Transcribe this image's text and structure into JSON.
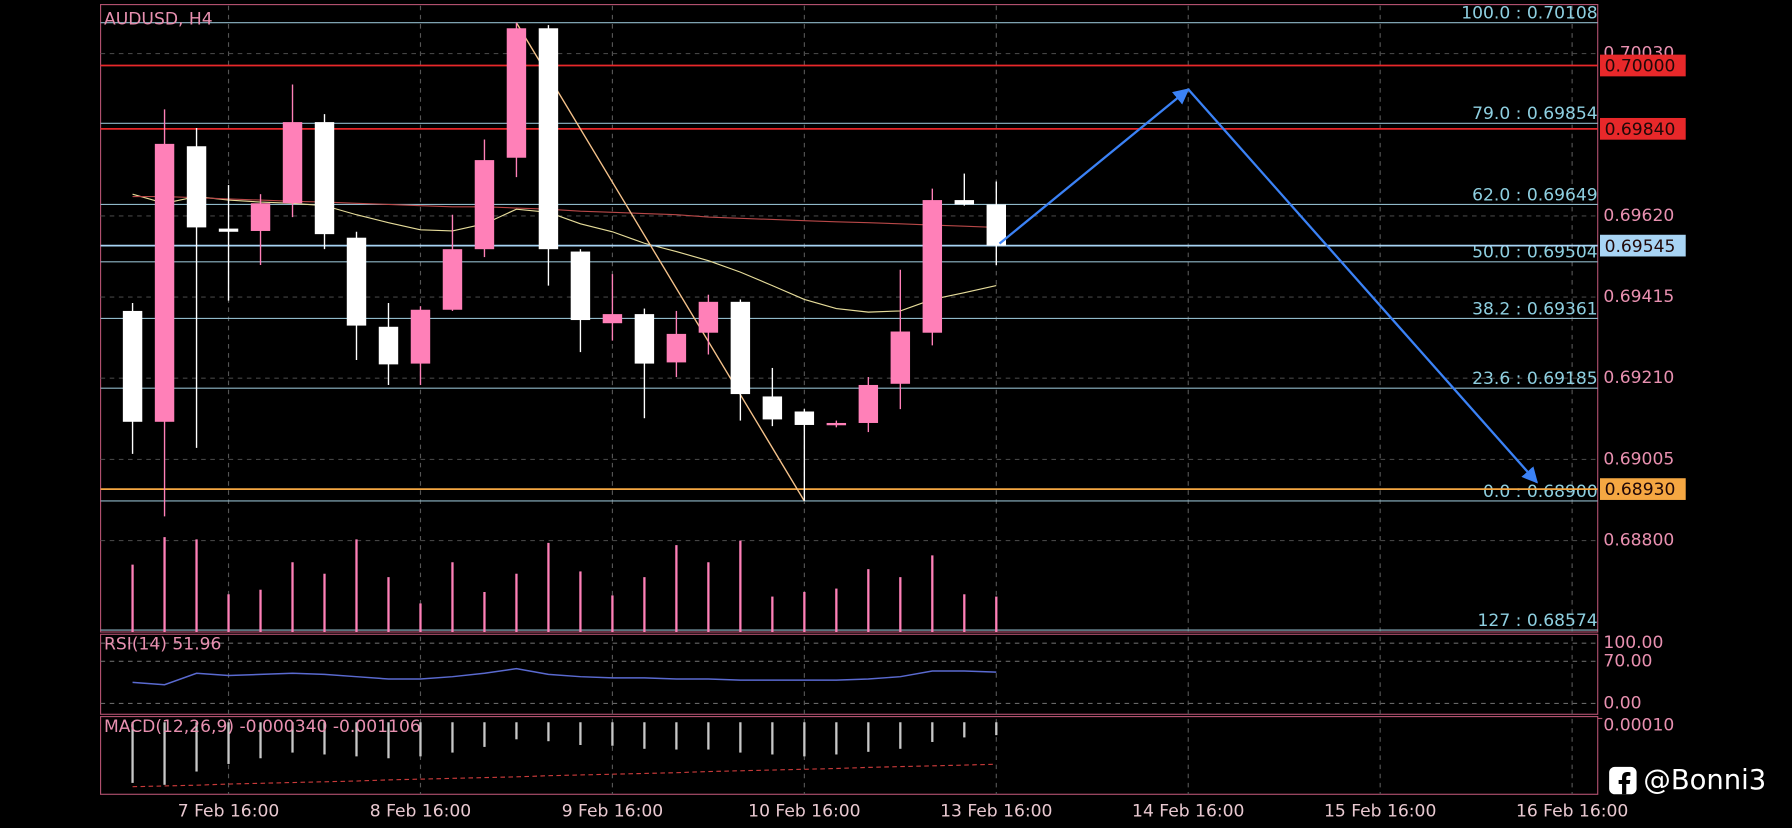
{
  "chart_data": {
    "type": "candlestick",
    "title": "AUDUSD, H4",
    "xlim": [
      -1,
      45.8
    ],
    "xticks": [
      {
        "value": 3,
        "label": "7 Feb 16:00"
      },
      {
        "value": 9,
        "label": "8 Feb 16:00"
      },
      {
        "value": 15,
        "label": "9 Feb 16:00"
      },
      {
        "value": 21,
        "label": "10 Feb 16:00"
      },
      {
        "value": 27,
        "label": "13 Feb 16:00"
      },
      {
        "value": 33,
        "label": "14 Feb 16:00"
      },
      {
        "value": 39,
        "label": "15 Feb 16:00"
      },
      {
        "value": 45,
        "label": "16 Feb 16:00"
      }
    ],
    "ylim": [
      0.68569,
      0.70151
    ],
    "yticks": [
      {
        "value": 0.7003,
        "label": "0.70030"
      },
      {
        "value": 0.6962,
        "label": "0.69620"
      },
      {
        "value": 0.69415,
        "label": "0.69415"
      },
      {
        "value": 0.6921,
        "label": "0.69210"
      },
      {
        "value": 0.69005,
        "label": "0.69005"
      },
      {
        "value": 0.688,
        "label": "0.68800"
      }
    ],
    "open": [
      0.6938,
      0.691,
      0.69796,
      0.69588,
      0.69582,
      0.69652,
      0.69857,
      0.69565,
      0.6934,
      0.69247,
      0.69383,
      0.69536,
      0.69767,
      0.70094,
      0.6953,
      0.69349,
      0.69372,
      0.6925,
      0.69325,
      0.69403,
      0.69164,
      0.69126,
      0.69092,
      0.69097,
      0.69196,
      0.69325,
      0.6966,
      0.69649
    ],
    "high": [
      0.694,
      0.69889,
      0.69842,
      0.69698,
      0.69675,
      0.69952,
      0.69877,
      0.6958,
      0.694,
      0.69392,
      0.69623,
      0.69813,
      0.70108,
      0.70102,
      0.69536,
      0.69473,
      0.69386,
      0.6938,
      0.69421,
      0.69409,
      0.69236,
      0.69132,
      0.69103,
      0.69213,
      0.69484,
      0.69689,
      0.69727,
      0.69707
    ],
    "low": [
      0.69019,
      0.68861,
      0.69034,
      0.69406,
      0.69496,
      0.69617,
      0.69536,
      0.69256,
      0.69193,
      0.69193,
      0.6938,
      0.69516,
      0.69718,
      0.69444,
      0.69276,
      0.69305,
      0.69109,
      0.69213,
      0.6927,
      0.69103,
      0.69089,
      0.689,
      0.69086,
      0.69074,
      0.69132,
      0.69293,
      0.69646,
      0.69496
    ],
    "close": [
      0.691,
      0.69802,
      0.69591,
      0.6958,
      0.69652,
      0.69857,
      0.69574,
      0.69343,
      0.69245,
      0.69383,
      0.69536,
      0.69761,
      0.70094,
      0.69536,
      0.69357,
      0.69372,
      0.69247,
      0.69322,
      0.69403,
      0.6917,
      0.69106,
      0.69092,
      0.69097,
      0.69193,
      0.69328,
      0.6966,
      0.69649,
      0.69545
    ],
    "up_color": "#ff80b8",
    "down_color": "#ffffff",
    "moving_averages": [
      {
        "color": "#e6dc9a",
        "values": [
          0.69675,
          0.69652,
          0.69669,
          0.6966,
          0.69655,
          0.69652,
          0.69646,
          0.69623,
          0.69603,
          0.69585,
          0.69582,
          0.696,
          0.69637,
          0.69629,
          0.696,
          0.6958,
          0.69551,
          0.6953,
          0.69507,
          0.69478,
          0.69444,
          0.69409,
          0.69386,
          0.69377,
          0.6938,
          0.69409,
          0.69426,
          0.69444
        ]
      },
      {
        "color": "#b84848",
        "values": [
          0.69669,
          0.69669,
          0.69666,
          0.69663,
          0.6966,
          0.69657,
          0.69655,
          0.69652,
          0.69649,
          0.69646,
          0.69643,
          0.69643,
          0.6964,
          0.69637,
          0.69632,
          0.69629,
          0.69626,
          0.69623,
          0.69617,
          0.69614,
          0.69611,
          0.69608,
          0.69605,
          0.69603,
          0.696,
          0.69597,
          0.69594,
          0.69591
        ]
      }
    ],
    "volume": {
      "color": "#ff80b8",
      "values": [
        59,
        83,
        81,
        33,
        37,
        61,
        51,
        81,
        48,
        25,
        61,
        35,
        51,
        78,
        53,
        32,
        48,
        76,
        61,
        80,
        31,
        35,
        38,
        55,
        48,
        67,
        33,
        31
      ]
    },
    "fib_levels": [
      {
        "value": 0.70108,
        "label": "100.0 : 0.70108"
      },
      {
        "value": 0.69854,
        "label": "79.0 : 0.69854"
      },
      {
        "value": 0.69649,
        "label": "62.0 : 0.69649"
      },
      {
        "value": 0.69504,
        "label": "50.0 : 0.69504"
      },
      {
        "value": 0.69361,
        "label": "38.2 : 0.69361"
      },
      {
        "value": 0.69185,
        "label": "23.6 : 0.69185"
      },
      {
        "value": 0.689,
        "label": "0.0 : 0.68900"
      },
      {
        "value": 0.68574,
        "label": "127 : 0.68574"
      }
    ],
    "price_lines": [
      {
        "value": 0.7,
        "label": "0.70000",
        "color": "#e8282a"
      },
      {
        "value": 0.6984,
        "label": "0.69840",
        "color": "#e8282a"
      },
      {
        "value": 0.69545,
        "label": "0.69545",
        "color": "#a8d4f4"
      },
      {
        "value": 0.6893,
        "label": "0.68930",
        "color": "#f5a742"
      }
    ],
    "trendline": {
      "color": "#f5c28a",
      "x": [
        12,
        21
      ],
      "values": [
        0.70108,
        0.689
      ]
    },
    "projection": {
      "color": "#3b82f6",
      "x": [
        27.1,
        33,
        43.9
      ],
      "values": [
        0.6955,
        0.6994,
        0.68947
      ]
    },
    "rsi": {
      "title": "RSI(14) 51.96",
      "color": "#5a6ad0",
      "ylim": [
        -18,
        111
      ],
      "yticks": [
        {
          "value": 100,
          "label": "100.00"
        },
        {
          "value": 70,
          "label": "70.00"
        },
        {
          "value": 0,
          "label": "0.00"
        }
      ],
      "values": [
        34.9,
        31.1,
        50.1,
        46.3,
        48.2,
        50.1,
        48.2,
        44.4,
        40.6,
        40.6,
        44.4,
        50.1,
        57.7,
        48.2,
        44.4,
        42.5,
        42.5,
        40.6,
        40.6,
        38.7,
        38.7,
        38.7,
        38.7,
        40.6,
        44.4,
        53.9,
        53.9,
        51.96
      ]
    },
    "macd": {
      "title": "MACD(12,26,9) -0.000340 -0.001106",
      "color": "#c8c8c8",
      "signal_color": "#c83a3a",
      "ylim": [
        -0.0019,
        0.00015
      ],
      "yticks": [
        {
          "value": 0.0001,
          "label": "0.00010"
        }
      ],
      "values": [
        -0.0016,
        -0.00165,
        -0.0013,
        -0.0011,
        -0.00095,
        -0.0008,
        -0.00085,
        -0.0009,
        -0.00095,
        -0.0009,
        -0.0008,
        -0.00065,
        -0.00045,
        -0.0005,
        -0.0006,
        -0.00062,
        -0.0007,
        -0.00072,
        -0.00072,
        -0.0008,
        -0.00085,
        -0.0009,
        -0.00085,
        -0.00078,
        -0.0007,
        -0.00052,
        -0.0004,
        -0.00034
      ],
      "signal": [
        -0.0017,
        -0.00168,
        -0.00166,
        -0.00163,
        -0.00161,
        -0.00159,
        -0.00157,
        -0.00155,
        -0.00152,
        -0.0015,
        -0.00148,
        -0.00146,
        -0.00144,
        -0.00141,
        -0.00139,
        -0.00137,
        -0.00135,
        -0.00133,
        -0.0013,
        -0.00128,
        -0.00126,
        -0.00124,
        -0.00122,
        -0.00119,
        -0.00117,
        -0.00115,
        -0.00113,
        -0.001106
      ]
    }
  },
  "watermark": "@Bonni3"
}
